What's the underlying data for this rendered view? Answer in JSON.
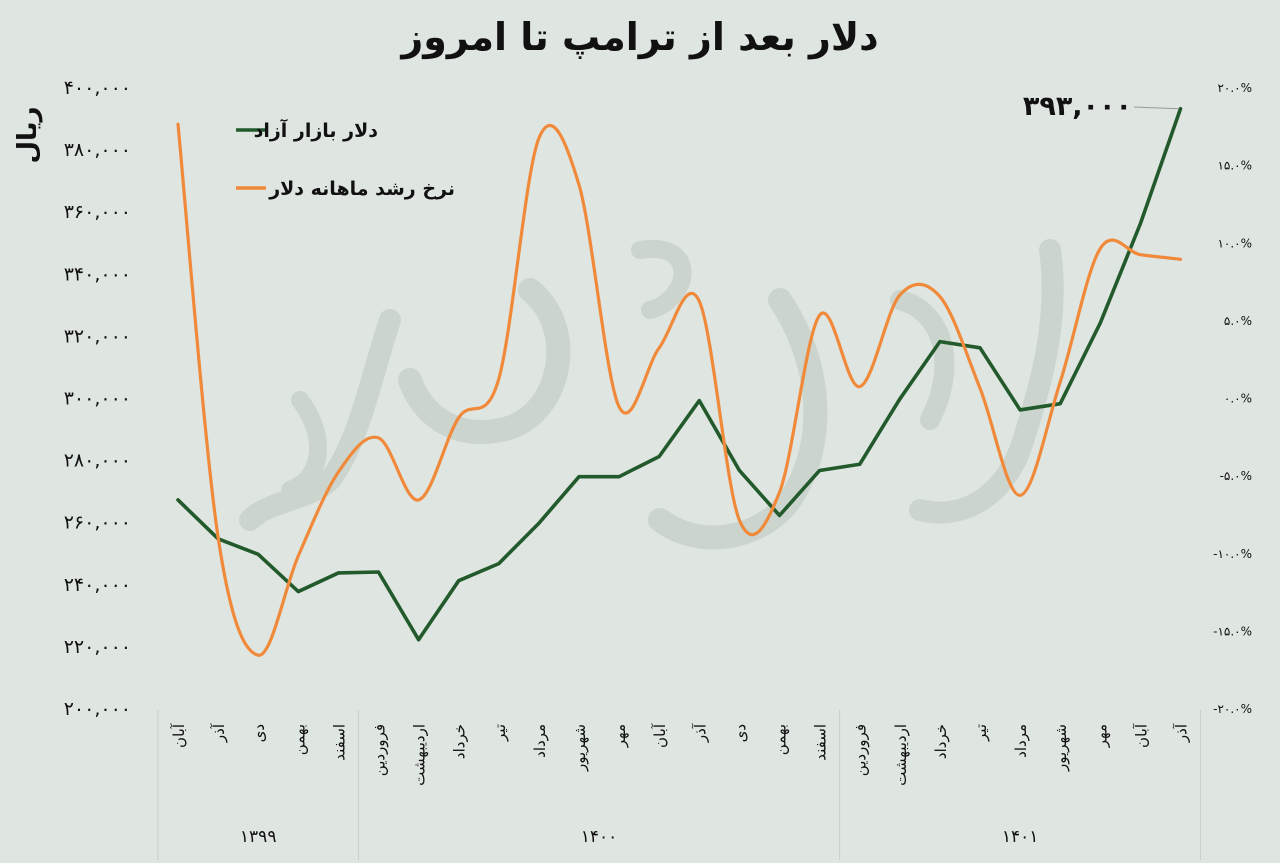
{
  "chart_data": {
    "type": "line",
    "title": "دلار بعد از ترامپ تا امروز",
    "ylabel": "ریال",
    "categories": [
      "آبان",
      "آذر",
      "دی",
      "بهمن",
      "اسفند",
      "فروردین",
      "اردیبهشت",
      "خرداد",
      "تیر",
      "مرداد",
      "شهریور",
      "مهر",
      "آبان",
      "آذر",
      "دی",
      "بهمن",
      "اسفند",
      "فروردین",
      "اردیبهشت",
      "خرداد",
      "تیر",
      "مرداد",
      "شهریور",
      "مهر",
      "آبان",
      "آذر"
    ],
    "year_groups": [
      {
        "label": "۱۳۹۹",
        "start": 0,
        "end": 4
      },
      {
        "label": "۱۴۰۰",
        "start": 5,
        "end": 16
      },
      {
        "label": "۱۴۰۱",
        "start": 17,
        "end": 25
      }
    ],
    "left_axis": {
      "ylim": [
        200000,
        400000
      ],
      "ticks": [
        200000,
        220000,
        240000,
        260000,
        280000,
        300000,
        320000,
        340000,
        360000,
        380000,
        400000
      ],
      "tick_labels": [
        "۲۰۰,۰۰۰",
        "۲۲۰,۰۰۰",
        "۲۴۰,۰۰۰",
        "۲۶۰,۰۰۰",
        "۲۸۰,۰۰۰",
        "۳۰۰,۰۰۰",
        "۳۲۰,۰۰۰",
        "۳۴۰,۰۰۰",
        "۳۶۰,۰۰۰",
        "۳۸۰,۰۰۰",
        "۴۰۰,۰۰۰"
      ]
    },
    "right_axis": {
      "ylim": [
        -20,
        20
      ],
      "ticks": [
        -20,
        -15,
        -10,
        -5,
        0,
        5,
        10,
        15,
        20
      ],
      "tick_labels": [
        "-۲۰.۰%",
        "-۱۵.۰%",
        "-۱۰.۰%",
        "-۵.۰%",
        "۰.۰%",
        "۵.۰%",
        "۱۰.۰%",
        "۱۵.۰%",
        "۲۰.۰%"
      ]
    },
    "legend_placement": "top-left",
    "series": [
      {
        "name": "دلار بازار آزاد",
        "axis": "left",
        "color": "#225a2c",
        "values": [
          267000,
          254500,
          249500,
          237500,
          243500,
          243800,
          222000,
          241000,
          246500,
          259500,
          274500,
          274500,
          281000,
          299000,
          276500,
          262000,
          276500,
          278500,
          299500,
          318000,
          316000,
          296000,
          298000,
          324000,
          356000,
          393000
        ]
      },
      {
        "name": "نرخ رشد ماهانه دلار",
        "axis": "right",
        "color": "#f08a3a",
        "values": [
          17.6,
          -9.0,
          -16.6,
          -10.2,
          -4.8,
          -2.6,
          -6.6,
          -1.3,
          1.2,
          16.7,
          13.7,
          -0.6,
          3.2,
          6.2,
          -7.9,
          -6.1,
          5.3,
          0.7,
          6.6,
          6.5,
          0.6,
          -6.3,
          1.0,
          9.6,
          9.2,
          8.9
        ]
      }
    ],
    "annotations": [
      {
        "text": "۳۹۳,۰۰۰",
        "series": 0,
        "index": 25
      }
    ]
  }
}
